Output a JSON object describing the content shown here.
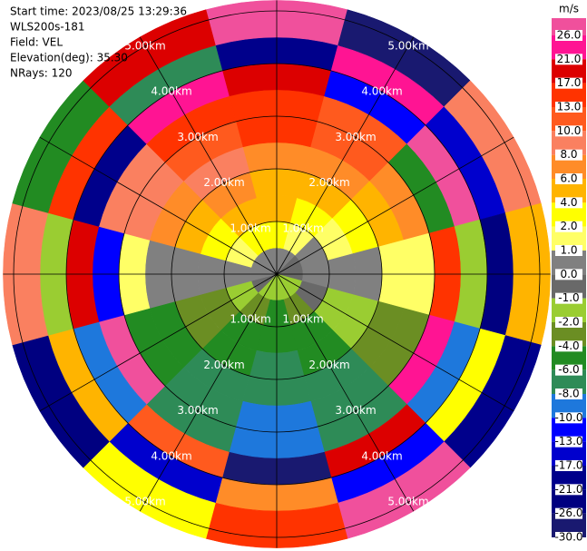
{
  "chart_data": {
    "type": "ppi",
    "info": [
      "Start time: 2023/08/25 13:29:36",
      "WLS200s-181",
      "Field: VEL",
      "Elevation(deg): 35.30",
      "NRays: 120"
    ],
    "azimuths": [
      0,
      30,
      60,
      90,
      120,
      150,
      180,
      210,
      240,
      270,
      300,
      330
    ],
    "range_edges_km": [
      0,
      0.5,
      1,
      1.5,
      2,
      2.5,
      3,
      3.5,
      4,
      4.5,
      5.2
    ],
    "values": [
      [
        0,
        2,
        4,
        4,
        6,
        13,
        13,
        17,
        -21,
        26
      ],
      [
        0,
        1,
        2,
        4,
        6,
        10,
        10,
        -13,
        21,
        -30
      ],
      [
        -1,
        0,
        1,
        2,
        4,
        6,
        -6,
        26,
        -17,
        8
      ],
      [
        -1,
        0,
        0,
        0,
        1,
        1,
        13,
        -2,
        -26,
        4
      ],
      [
        -2,
        -1,
        -2,
        -2,
        -4,
        -4,
        21,
        -10,
        2,
        -21
      ],
      [
        -2,
        -4,
        -6,
        -6,
        -8,
        -8,
        -8,
        17,
        -13,
        26
      ],
      [
        -2,
        -6,
        -6,
        -8,
        -8,
        -10,
        -10,
        -30,
        6,
        13
      ],
      [
        -2,
        -4,
        -6,
        -6,
        -8,
        -8,
        -8,
        10,
        -17,
        2
      ],
      [
        -1,
        -2,
        -4,
        -4,
        -6,
        -6,
        26,
        -10,
        4,
        -26
      ],
      [
        0,
        0,
        0,
        0,
        0,
        1,
        -13,
        17,
        -2,
        8
      ],
      [
        0,
        1,
        2,
        4,
        6,
        8,
        8,
        -21,
        13,
        -6
      ],
      [
        0,
        2,
        4,
        6,
        8,
        10,
        13,
        21,
        -8,
        17
      ]
    ],
    "rings": [
      {
        "value": 1,
        "label": "1.00km"
      },
      {
        "value": 2,
        "label": "2.00km"
      },
      {
        "value": 3,
        "label": "3.00km"
      },
      {
        "value": 4,
        "label": "4.00km"
      },
      {
        "value": 5,
        "label": "5.00km"
      }
    ],
    "colorbar": {
      "title": "m/s",
      "ticks": [
        {
          "value": 26,
          "label": "26.0"
        },
        {
          "value": 21,
          "label": "21.0"
        },
        {
          "value": 17,
          "label": "17.0"
        },
        {
          "value": 13,
          "label": "13.0"
        },
        {
          "value": 10,
          "label": "10.0"
        },
        {
          "value": 8,
          "label": "8.0"
        },
        {
          "value": 6,
          "label": "6.0"
        },
        {
          "value": 4,
          "label": "4.0"
        },
        {
          "value": 2,
          "label": "2.0"
        },
        {
          "value": 1,
          "label": "1.0"
        },
        {
          "value": 0,
          "label": "0.0"
        },
        {
          "value": -1,
          "label": "-1.0"
        },
        {
          "value": -2,
          "label": "-2.0"
        },
        {
          "value": -4,
          "label": "-4.0"
        },
        {
          "value": -6,
          "label": "-6.0"
        },
        {
          "value": -8,
          "label": "-8.0"
        },
        {
          "value": -10,
          "label": "-10.0"
        },
        {
          "value": -13,
          "label": "-13.0"
        },
        {
          "value": -17,
          "label": "-17.0"
        },
        {
          "value": -21,
          "label": "-21.0"
        },
        {
          "value": -26,
          "label": "-26.0"
        },
        {
          "value": -30,
          "label": "-30.0"
        }
      ],
      "colors": [
        "#f0509c",
        "#ff1493",
        "#dc0000",
        "#ff3300",
        "#ff5a1e",
        "#fa8060",
        "#ff8c28",
        "#ffb400",
        "#ffff00",
        "#ffff66",
        "#808080",
        "#696969",
        "#9acd32",
        "#6b8e23",
        "#228b22",
        "#2e8b57",
        "#1e78dc",
        "#0000ff",
        "#0000cd",
        "#00008b",
        "#000080",
        "#191970"
      ]
    }
  }
}
